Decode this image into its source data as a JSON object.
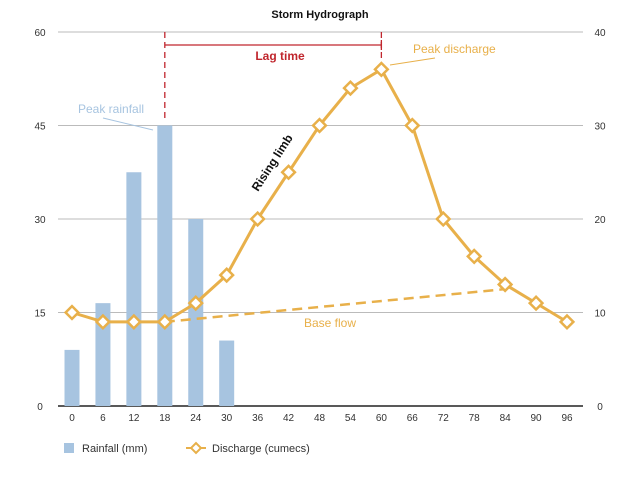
{
  "chart_data": {
    "type": "bar+line",
    "title": "Storm Hydrograph",
    "categories": [
      0,
      6,
      12,
      18,
      24,
      30,
      36,
      42,
      48,
      54,
      60,
      66,
      72,
      78,
      84,
      90,
      96
    ],
    "y_left": {
      "range": [
        0,
        60
      ],
      "ticks": [
        0,
        15,
        30,
        45,
        60
      ]
    },
    "y_right": {
      "range": [
        0,
        40
      ],
      "ticks": [
        0,
        10,
        20,
        30,
        40
      ]
    },
    "grid": true,
    "legend_placement": "bottom-left",
    "series": [
      {
        "name": "Rainfall (mm)",
        "type": "bar",
        "axis": "left",
        "color": "#a7c4e0",
        "values": [
          9,
          16.5,
          37.5,
          45,
          30,
          10.5,
          null,
          null,
          null,
          null,
          null,
          null,
          null,
          null,
          null,
          null,
          null
        ]
      },
      {
        "name": "Discharge (cumecs)",
        "type": "line",
        "axis": "right",
        "color": "#e8b04a",
        "marker": "diamond",
        "values": [
          10,
          9,
          9,
          9,
          11,
          14,
          20,
          25,
          30,
          34,
          36,
          30,
          20,
          16,
          13,
          11,
          9
        ]
      }
    ],
    "base_flow": {
      "label": "Base flow",
      "from": [
        18,
        9
      ],
      "to": [
        84,
        12.5
      ],
      "style": "dashed"
    },
    "annotations": {
      "lag_time": {
        "label": "Lag time",
        "from": 18,
        "to": 60,
        "color": "#c0262d"
      },
      "peak_rainfall": "Peak rainfall",
      "peak_discharge": "Peak discharge",
      "rising_limb": "Rising limb"
    }
  }
}
